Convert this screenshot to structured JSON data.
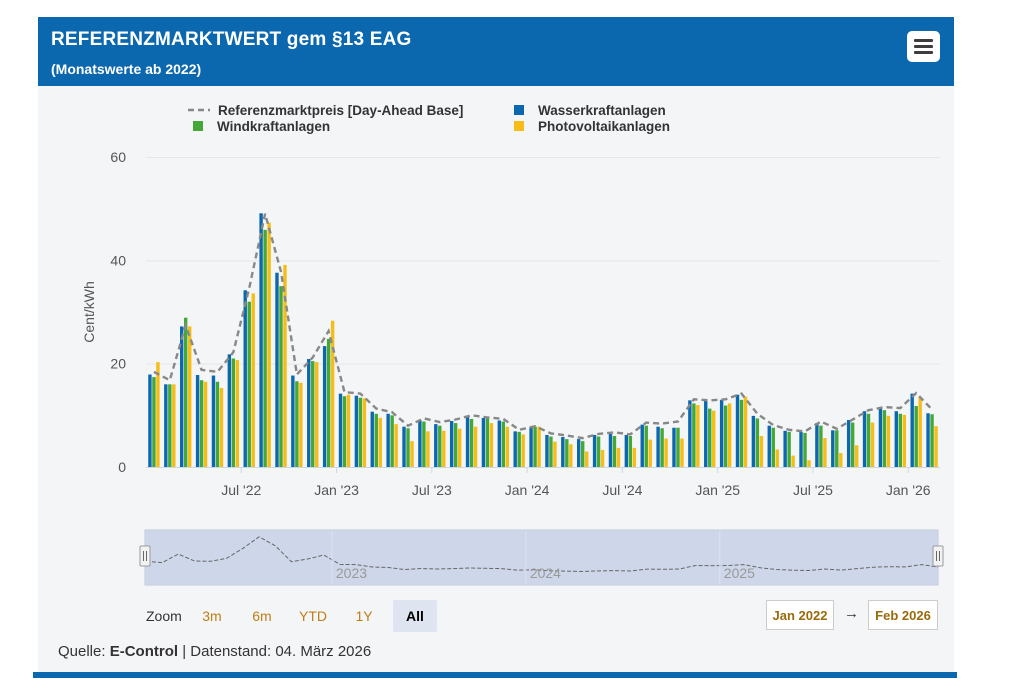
{
  "header": {
    "title": "REFERENZMARKTWERT gem §13 EAG",
    "subtitle": "(Monatswerte ab 2022)",
    "menu_icon": "hamburger-menu-icon"
  },
  "colors": {
    "header_bg": "#0c68ae",
    "wasser": "#0c68ae",
    "wind": "#43a836",
    "pv": "#f6bd16",
    "referenz": "#888888"
  },
  "chart_data": {
    "type": "bar",
    "ylabel": "Cent/kWh",
    "ylim": [
      0,
      60
    ],
    "yticks": [
      0,
      20,
      40,
      60
    ],
    "grid": true,
    "legend_position": "top",
    "x_tick_labels": [
      "Jul '22",
      "Jan '23",
      "Jul '23",
      "Jan '24",
      "Jul '24",
      "Jan '25",
      "Jul '25",
      "Jan '26"
    ],
    "categories": [
      "2022-01",
      "2022-02",
      "2022-03",
      "2022-04",
      "2022-05",
      "2022-06",
      "2022-07",
      "2022-08",
      "2022-09",
      "2022-10",
      "2022-11",
      "2022-12",
      "2023-01",
      "2023-02",
      "2023-03",
      "2023-04",
      "2023-05",
      "2023-06",
      "2023-07",
      "2023-08",
      "2023-09",
      "2023-10",
      "2023-11",
      "2023-12",
      "2024-01",
      "2024-02",
      "2024-03",
      "2024-04",
      "2024-05",
      "2024-06",
      "2024-07",
      "2024-08",
      "2024-09",
      "2024-10",
      "2024-11",
      "2024-12",
      "2025-01",
      "2025-02",
      "2025-03",
      "2025-04",
      "2025-05",
      "2025-06",
      "2025-07",
      "2025-08",
      "2025-09",
      "2025-10",
      "2025-11",
      "2025-12",
      "2026-01",
      "2026-02"
    ],
    "series": [
      {
        "name": "Referenzmarktpreis [Day-Ahead Base]",
        "type": "line",
        "values": [
          18.4,
          16.8,
          27.4,
          18.8,
          18.4,
          22.2,
          34.6,
          49.0,
          37.8,
          17.9,
          21.2,
          26.3,
          14.5,
          14.2,
          11.3,
          10.6,
          8.0,
          9.4,
          8.7,
          9.2,
          10.0,
          9.6,
          9.3,
          7.2,
          7.9,
          6.5,
          6.1,
          5.6,
          6.4,
          6.7,
          6.3,
          8.6,
          8.4,
          8.8,
          13.1,
          12.9,
          13.1,
          14.2,
          10.3,
          8.1,
          7.2,
          6.9,
          8.8,
          7.4,
          9.2,
          11.0,
          11.6,
          11.4,
          14.3,
          11.1
        ]
      },
      {
        "name": "Wasserkraftanlagen",
        "type": "bar",
        "values": [
          17.9,
          16.0,
          27.2,
          17.8,
          17.7,
          21.8,
          34.2,
          49.1,
          37.6,
          17.7,
          20.9,
          23.4,
          14.2,
          13.8,
          10.7,
          10.3,
          7.8,
          9.1,
          8.3,
          8.9,
          9.7,
          9.5,
          9.0,
          6.9,
          7.7,
          6.2,
          5.8,
          5.4,
          6.2,
          6.4,
          6.2,
          8.2,
          7.8,
          7.6,
          12.9,
          12.8,
          13.0,
          14.0,
          9.9,
          8.0,
          7.0,
          6.8,
          8.5,
          7.1,
          9.1,
          10.8,
          11.4,
          10.8,
          14.2,
          10.4
        ]
      },
      {
        "name": "Windkraftanlagen",
        "type": "bar",
        "values": [
          17.4,
          16.0,
          28.9,
          16.8,
          16.5,
          21.0,
          32.0,
          45.9,
          35.0,
          16.6,
          20.5,
          24.8,
          13.7,
          13.4,
          10.3,
          10.0,
          7.5,
          8.8,
          8.0,
          8.5,
          9.3,
          9.4,
          8.8,
          6.8,
          7.8,
          5.9,
          5.4,
          5.0,
          5.9,
          6.0,
          6.0,
          8.0,
          7.5,
          7.6,
          12.3,
          11.3,
          11.9,
          13.0,
          9.4,
          7.6,
          6.8,
          6.6,
          8.0,
          7.1,
          8.6,
          10.3,
          11.0,
          10.3,
          11.8,
          10.2
        ]
      },
      {
        "name": "Photovoltaikanlagen",
        "type": "bar",
        "values": [
          20.3,
          16.0,
          27.2,
          16.5,
          15.3,
          20.7,
          33.6,
          47.3,
          39.1,
          16.3,
          20.3,
          28.3,
          14.0,
          13.3,
          9.5,
          8.3,
          5.0,
          6.9,
          7.0,
          7.4,
          7.8,
          8.5,
          7.8,
          6.3,
          7.8,
          4.9,
          4.4,
          3.0,
          3.3,
          3.7,
          3.7,
          5.3,
          5.5,
          5.5,
          12.0,
          10.9,
          12.3,
          13.6,
          6.0,
          3.4,
          2.2,
          1.3,
          5.6,
          2.7,
          4.2,
          8.6,
          9.9,
          10.1,
          13.5,
          7.9
        ]
      }
    ]
  },
  "navigator": {
    "year_labels": [
      "2023",
      "2024",
      "2025"
    ]
  },
  "zoom": {
    "label": "Zoom",
    "buttons": [
      "3m",
      "6m",
      "YTD",
      "1Y",
      "All"
    ],
    "active": "All"
  },
  "range": {
    "from": "Jan 2022",
    "arrow": "→",
    "to": "Feb 2026"
  },
  "footer": {
    "prefix": "Quelle:",
    "source": "E-Control",
    "suffix": "| Datenstand: 04. März 2026"
  }
}
